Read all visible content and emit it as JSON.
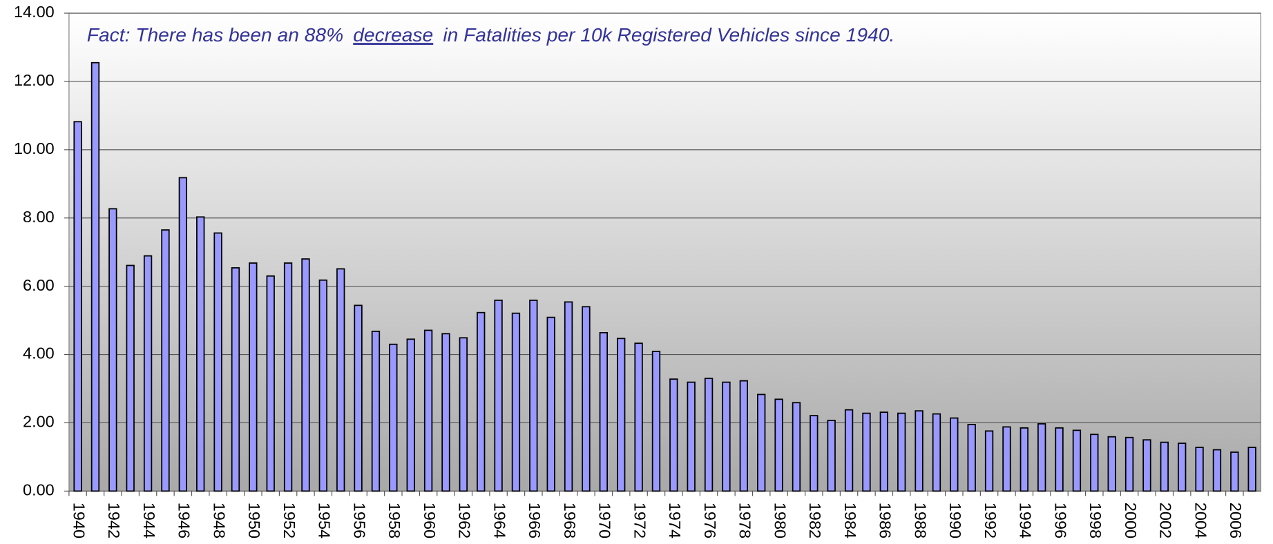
{
  "chart_data": {
    "type": "bar",
    "annotation": {
      "parts": [
        "Fact: There has been an 88%",
        "decrease",
        "in Fatalities per 10k Registered Vehicles since 1940."
      ]
    },
    "categories": [
      "1940",
      null,
      "1942",
      null,
      "1944",
      null,
      "1946",
      null,
      "1948",
      null,
      "1950",
      null,
      "1952",
      null,
      "1954",
      null,
      "1956",
      null,
      "1958",
      null,
      "1960",
      null,
      "1962",
      null,
      "1964",
      null,
      "1966",
      null,
      "1968",
      null,
      "1970",
      null,
      "1972",
      null,
      "1974",
      null,
      "1976",
      null,
      "1978",
      null,
      "1980",
      null,
      "1982",
      null,
      "1984",
      null,
      "1986",
      null,
      "1988",
      null,
      "1990",
      null,
      "1992",
      null,
      "1994",
      null,
      "1996",
      null,
      "1998",
      null,
      "2000",
      null,
      "2002",
      null,
      "2004",
      null,
      "2006",
      null
    ],
    "values": [
      10.82,
      12.55,
      8.27,
      6.61,
      6.89,
      7.65,
      9.18,
      8.03,
      7.56,
      6.54,
      6.68,
      6.3,
      6.68,
      6.8,
      6.18,
      6.51,
      5.44,
      4.68,
      4.3,
      4.45,
      4.71,
      4.61,
      4.49,
      5.23,
      5.59,
      5.21,
      5.59,
      5.09,
      5.54,
      5.4,
      4.64,
      4.47,
      4.33,
      4.09,
      3.28,
      3.19,
      3.3,
      3.19,
      3.23,
      2.83,
      2.69,
      2.59,
      2.21,
      2.07,
      2.38,
      2.28,
      2.31,
      2.28,
      2.35,
      2.26,
      2.14,
      1.95,
      1.76,
      1.88,
      1.85,
      1.97,
      1.85,
      1.78,
      1.66,
      1.59,
      1.57,
      1.5,
      1.43,
      1.4,
      1.28,
      1.21,
      1.14,
      1.28
    ],
    "color": "#9999ff",
    "ylim": [
      0,
      14
    ],
    "yticks": [
      {
        "value": 0,
        "label": "0.00"
      },
      {
        "value": 2,
        "label": "2.00"
      },
      {
        "value": 4,
        "label": "4.00"
      },
      {
        "value": 6,
        "label": "6.00"
      },
      {
        "value": 8,
        "label": "8.00"
      },
      {
        "value": 10,
        "label": "10.00"
      },
      {
        "value": 12,
        "label": "12.00"
      },
      {
        "value": 14,
        "label": "14.00"
      }
    ],
    "grid": true
  }
}
